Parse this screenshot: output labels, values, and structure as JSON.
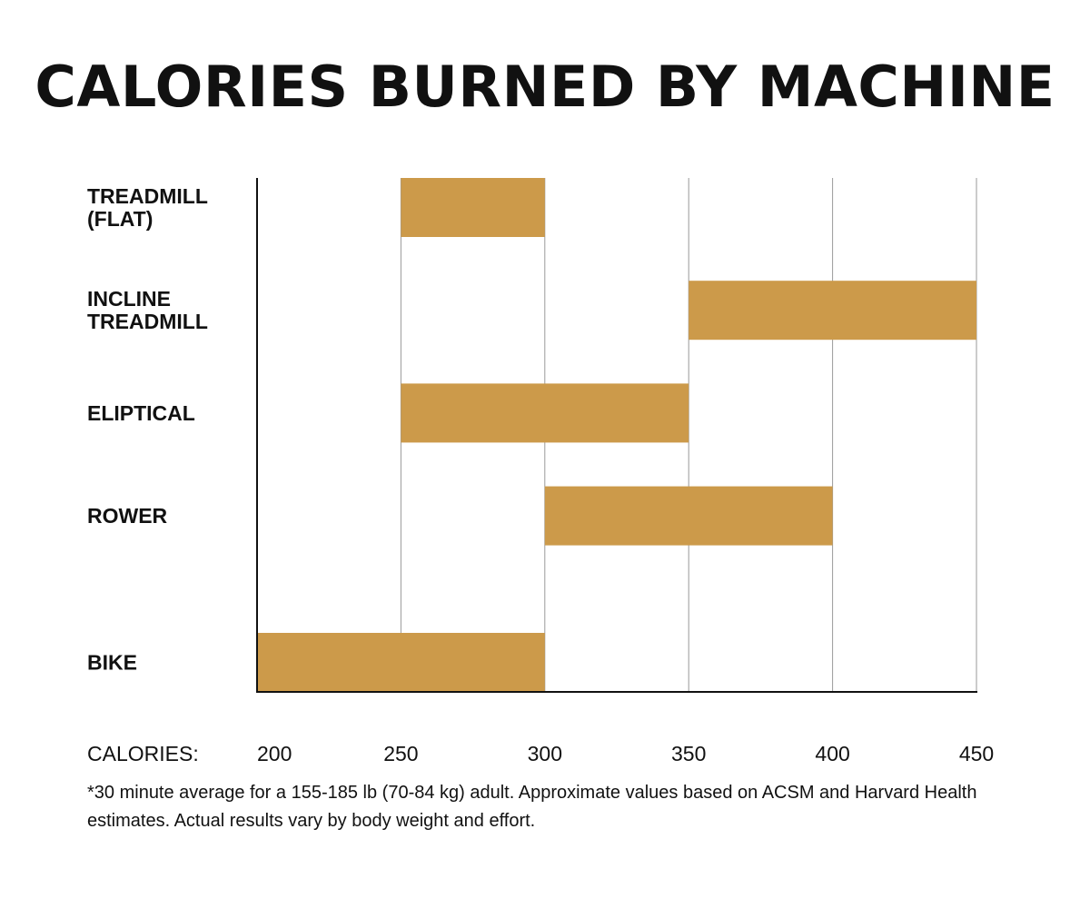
{
  "title": "CALORIES BURNED BY MACHINE",
  "footnote": "*30 minute average for a 155-185 lb (70-84 kg) adult. Approximate values based on ACSM and Harvard Health estimates. Actual results vary by body weight and effort.",
  "colors": {
    "bar": "#CC9A4A",
    "gridline": "#9a9a9a",
    "axis": "#111111",
    "text": "#111111"
  },
  "chart_data": {
    "type": "bar",
    "orientation": "horizontal",
    "range_bars": true,
    "title": "CALORIES BURNED BY MACHINE",
    "xlabel": "CALORIES:",
    "ylabel": "",
    "xlim": [
      200,
      450
    ],
    "ticks": [
      200,
      250,
      300,
      350,
      400,
      450
    ],
    "tick_labels": [
      "200",
      "250",
      "300",
      "350",
      "400",
      "450"
    ],
    "grid": true,
    "categories": [
      [
        "TREADMILL",
        "(FLAT)"
      ],
      [
        "INCLINE",
        "TREADMILL"
      ],
      [
        "ELIPTICAL"
      ],
      [
        "ROWER"
      ],
      [
        "BIKE"
      ]
    ],
    "ranges": [
      [
        250,
        300
      ],
      [
        350,
        450
      ],
      [
        250,
        350
      ],
      [
        300,
        400
      ],
      [
        200,
        300
      ]
    ]
  }
}
